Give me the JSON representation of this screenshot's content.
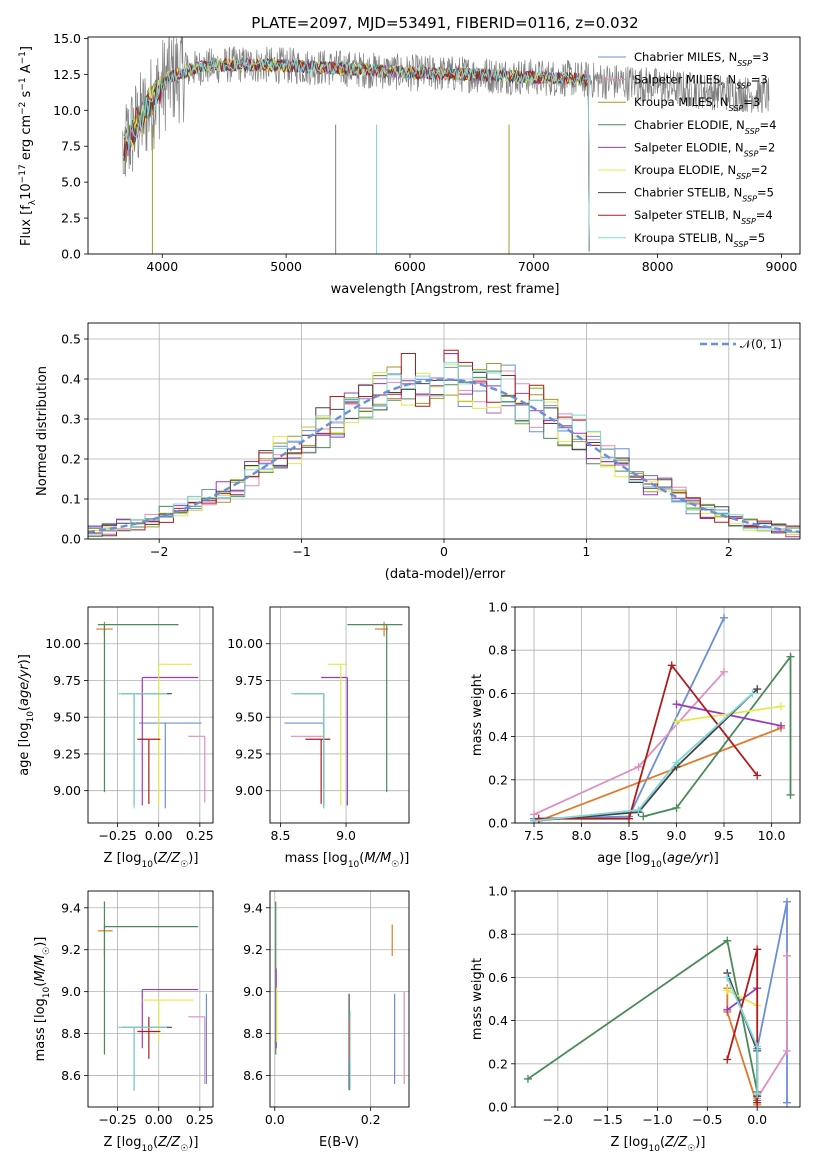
{
  "title": "PLATE=2097, MJD=53491, FIBERID=0116, z=0.032",
  "colors": {
    "Chabrier MILES": "#6a8fd8",
    "Salpeter MILES": "#e08dc0",
    "Kroupa MILES": "#a09a2a",
    "Chabrier ELODIE": "#4c8a5a",
    "Salpeter ELODIE": "#9b3bbb",
    "Kroupa ELODIE": "#e4e84e",
    "Chabrier STELIB": "#444444",
    "Salpeter STELIB": "#b01c1c",
    "Kroupa STELIB": "#7fd8d8",
    "orange": "#e07a2a",
    "normal": "#6a8fd8",
    "grid": "#b0b0b0"
  },
  "legend": [
    {
      "name": "Chabrier MILES",
      "nssp": "3"
    },
    {
      "name": "Salpeter MILES",
      "nssp": "3"
    },
    {
      "name": "Kroupa MILES",
      "nssp": "3"
    },
    {
      "name": "Chabrier ELODIE",
      "nssp": "4"
    },
    {
      "name": "Salpeter ELODIE",
      "nssp": "2"
    },
    {
      "name": "Kroupa ELODIE",
      "nssp": "2"
    },
    {
      "name": "Chabrier STELIB",
      "nssp": "5"
    },
    {
      "name": "Salpeter STELIB",
      "nssp": "4"
    },
    {
      "name": "Kroupa STELIB",
      "nssp": "5"
    }
  ],
  "legend_normal": "𝒩(0, 1)",
  "chart_data": [
    {
      "id": "spectrum",
      "type": "line",
      "xlabel": "wavelength [Angstrom, rest frame]",
      "ylabel": "Flux [f_λ 10^-17 erg cm^-2 s^-1 A^-1]",
      "xlim": [
        3400,
        9150
      ],
      "ylim": [
        0,
        15.1
      ],
      "xticks": [
        4000,
        5000,
        6000,
        7000,
        8000,
        9000
      ],
      "yticks": [
        0.0,
        2.5,
        5.0,
        7.5,
        10.0,
        12.5,
        15.0
      ],
      "ytick_labels": [
        "0.0",
        "2.5",
        "5.0",
        "7.5",
        "10.0",
        "12.5",
        "15.0"
      ],
      "grid": false,
      "legend_position": "top-right",
      "data_range": [
        3680,
        8900
      ],
      "model_continuum": {
        "x": [
          3690,
          3800,
          3950,
          4050,
          4300,
          4600,
          5000,
          5500,
          6000,
          6500,
          7000,
          7300,
          7450
        ],
        "y": [
          7.5,
          9.0,
          11.0,
          12.3,
          13.0,
          13.2,
          13.1,
          12.9,
          12.6,
          12.5,
          12.3,
          12.2,
          12.1
        ]
      },
      "model_end": 7440
    },
    {
      "id": "residuals",
      "type": "histogram",
      "xlabel": "(data-model)/error",
      "ylabel": "Normed distribution",
      "xlim": [
        -2.5,
        2.5
      ],
      "ylim": [
        0,
        0.54
      ],
      "xticks": [
        -2,
        -1,
        0,
        1,
        2
      ],
      "yticks": [
        0.0,
        0.1,
        0.2,
        0.3,
        0.4,
        0.5
      ],
      "ytick_labels": [
        "0.0",
        "0.1",
        "0.2",
        "0.3",
        "0.4",
        "0.5"
      ],
      "grid": true,
      "legend_position": "top-right",
      "bin_width": 0.1
    },
    {
      "id": "age_vs_Z",
      "type": "scatter",
      "xlabel": "Z [log10(Z/Z☉)]",
      "ylabel": "age  [log10(age/yr)]",
      "xlim": [
        -0.43,
        0.33
      ],
      "ylim": [
        8.78,
        10.25
      ],
      "xticks": [
        -0.25,
        0.0,
        0.25
      ],
      "xtick_labels": [
        "−0.25",
        "0.00",
        "0.25"
      ],
      "yticks": [
        9.0,
        9.25,
        9.5,
        9.75,
        10.0
      ],
      "ytick_labels": [
        "9.00",
        "9.25",
        "9.50",
        "9.75",
        "10.00"
      ],
      "grid": true,
      "points": [
        {
          "series": "Chabrier MILES",
          "x": 0.04,
          "y": 9.46,
          "xerr": [
            0.16,
            0.22
          ],
          "yerr": [
            0.58,
            0.0
          ]
        },
        {
          "series": "Salpeter MILES",
          "x": 0.28,
          "y": 9.37,
          "xerr": [
            0.1,
            0.0
          ],
          "yerr": [
            0.45,
            0.0
          ]
        },
        {
          "series": "orange",
          "x": -0.33,
          "y": 10.1,
          "xerr": [
            0.05,
            0.05
          ],
          "yerr": [
            0.05,
            0.05
          ]
        },
        {
          "series": "Chabrier ELODIE",
          "x": -0.33,
          "y": 10.13,
          "xerr": [
            0.04,
            0.45
          ],
          "yerr": [
            1.14,
            0.0
          ]
        },
        {
          "series": "Salpeter ELODIE",
          "x": -0.1,
          "y": 9.77,
          "xerr": [
            0.0,
            0.34
          ],
          "yerr": [
            0.87,
            0.0
          ]
        },
        {
          "series": "Kroupa ELODIE",
          "x": 0.0,
          "y": 9.86,
          "xerr": [
            0.0,
            0.2
          ],
          "yerr": [
            0.96,
            0.0
          ]
        },
        {
          "series": "Chabrier STELIB",
          "x": -0.15,
          "y": 9.66,
          "xerr": [
            0.08,
            0.23
          ],
          "yerr": [
            0.76,
            0.0
          ]
        },
        {
          "series": "Salpeter STELIB",
          "x": -0.06,
          "y": 9.35,
          "xerr": [
            0.07,
            0.07
          ],
          "yerr": [
            0.44,
            0.0
          ]
        },
        {
          "series": "Kroupa STELIB",
          "x": -0.15,
          "y": 9.66,
          "xerr": [
            0.1,
            0.2
          ],
          "yerr": [
            0.78,
            0.0
          ]
        }
      ]
    },
    {
      "id": "age_vs_mass",
      "type": "scatter",
      "xlabel": "mass [log10(M/M☉)]",
      "ylabel": "",
      "xlim": [
        8.42,
        9.48
      ],
      "ylim": [
        8.78,
        10.25
      ],
      "xticks": [
        8.5,
        9.0
      ],
      "xtick_labels": [
        "8.5",
        "9.0"
      ],
      "yticks": [
        9.0,
        9.25,
        9.5,
        9.75,
        10.0
      ],
      "ytick_labels": [
        "9.00",
        "9.25",
        "9.50",
        "9.75",
        "10.00"
      ],
      "grid": true,
      "points": [
        {
          "series": "Chabrier MILES",
          "x": 8.83,
          "y": 9.46,
          "xerr": [
            0.3,
            0.0
          ],
          "yerr": [
            0.58,
            0.0
          ]
        },
        {
          "series": "Salpeter MILES",
          "x": 8.83,
          "y": 9.37,
          "xerr": [
            0.25,
            0.0
          ],
          "yerr": [
            0.45,
            0.0
          ]
        },
        {
          "series": "orange",
          "x": 9.29,
          "y": 10.1,
          "xerr": [
            0.07,
            0.03
          ],
          "yerr": [
            0.05,
            0.05
          ]
        },
        {
          "series": "Chabrier ELODIE",
          "x": 9.31,
          "y": 10.13,
          "xerr": [
            0.3,
            0.12
          ],
          "yerr": [
            1.14,
            0.0
          ]
        },
        {
          "series": "Salpeter ELODIE",
          "x": 9.01,
          "y": 9.77,
          "xerr": [
            0.2,
            0.0
          ],
          "yerr": [
            0.87,
            0.0
          ]
        },
        {
          "series": "Kroupa ELODIE",
          "x": 8.96,
          "y": 9.86,
          "xerr": [
            0.1,
            0.05
          ],
          "yerr": [
            0.96,
            0.0
          ]
        },
        {
          "series": "Chabrier STELIB",
          "x": 8.83,
          "y": 9.66,
          "xerr": [
            0.23,
            0.0
          ],
          "yerr": [
            0.76,
            0.0
          ]
        },
        {
          "series": "Salpeter STELIB",
          "x": 8.81,
          "y": 9.35,
          "xerr": [
            0.12,
            0.07
          ],
          "yerr": [
            0.44,
            0.0
          ]
        },
        {
          "series": "Kroupa STELIB",
          "x": 8.83,
          "y": 9.66,
          "xerr": [
            0.25,
            0.0
          ],
          "yerr": [
            0.78,
            0.0
          ]
        }
      ]
    },
    {
      "id": "weight_vs_age",
      "type": "line",
      "xlabel": "age  [log10(age/yr)]",
      "ylabel": "mass weight",
      "xlim": [
        7.3,
        10.3
      ],
      "ylim": [
        0.0,
        1.0
      ],
      "xticks": [
        7.5,
        8.0,
        8.5,
        9.0,
        9.5,
        10.0
      ],
      "xtick_labels": [
        "7.5",
        "8.0",
        "8.5",
        "9.0",
        "9.5",
        "10.0"
      ],
      "yticks": [
        0.0,
        0.2,
        0.4,
        0.6,
        0.8,
        1.0
      ],
      "ytick_labels": [
        "0.0",
        "0.2",
        "0.4",
        "0.6",
        "0.8",
        "1.0"
      ],
      "grid": true,
      "series": [
        {
          "series": "Chabrier MILES",
          "x": [
            7.5,
            8.5,
            9.5
          ],
          "y": [
            0.02,
            0.03,
            0.95
          ]
        },
        {
          "series": "Salpeter MILES",
          "x": [
            7.5,
            8.6,
            9.5
          ],
          "y": [
            0.04,
            0.26,
            0.7
          ]
        },
        {
          "series": "orange",
          "x": [
            7.55,
            10.1
          ],
          "y": [
            0.01,
            0.44
          ]
        },
        {
          "series": "Chabrier ELODIE",
          "x": [
            8.65,
            9.0,
            10.2,
            10.2
          ],
          "y": [
            0.03,
            0.07,
            0.77,
            0.13
          ]
        },
        {
          "series": "Salpeter ELODIE",
          "x": [
            9.0,
            10.1
          ],
          "y": [
            0.55,
            0.45
          ]
        },
        {
          "series": "Kroupa ELODIE",
          "x": [
            9.0,
            10.1
          ],
          "y": [
            0.47,
            0.54
          ]
        },
        {
          "series": "Chabrier STELIB",
          "x": [
            7.5,
            8.6,
            9.0,
            9.85
          ],
          "y": [
            0.01,
            0.05,
            0.26,
            0.62
          ]
        },
        {
          "series": "Salpeter STELIB",
          "x": [
            7.55,
            8.5,
            8.95,
            9.85
          ],
          "y": [
            0.02,
            0.02,
            0.73,
            0.22
          ]
        },
        {
          "series": "Kroupa STELIB",
          "x": [
            7.5,
            8.6,
            9.0,
            9.8
          ],
          "y": [
            0.01,
            0.06,
            0.28,
            0.6
          ]
        }
      ]
    },
    {
      "id": "mass_vs_Z",
      "type": "scatter",
      "xlabel": "Z [log10(Z/Z☉)]",
      "ylabel": "mass [log10(M/M☉)]",
      "xlim": [
        -0.43,
        0.33
      ],
      "ylim": [
        8.45,
        9.48
      ],
      "xticks": [
        -0.25,
        0.0,
        0.25
      ],
      "xtick_labels": [
        "−0.25",
        "0.00",
        "0.25"
      ],
      "yticks": [
        8.6,
        8.8,
        9.0,
        9.2,
        9.4
      ],
      "ytick_labels": [
        "8.6",
        "8.8",
        "9.0",
        "9.2",
        "9.4"
      ],
      "grid": true,
      "points": [
        {
          "series": "Chabrier MILES",
          "x": 0.29,
          "y": 8.83,
          "xerr": [
            0.0,
            0.0
          ],
          "yerr": [
            0.27,
            0.16
          ]
        },
        {
          "series": "Salpeter MILES",
          "x": 0.28,
          "y": 8.88,
          "xerr": [
            0.1,
            0.0
          ],
          "yerr": [
            0.32,
            0.0
          ]
        },
        {
          "series": "orange",
          "x": -0.33,
          "y": 9.29,
          "xerr": [
            0.04,
            0.05
          ],
          "yerr": [
            0.12,
            0.03
          ]
        },
        {
          "series": "Chabrier ELODIE",
          "x": -0.33,
          "y": 9.31,
          "xerr": [
            0.0,
            0.57
          ],
          "yerr": [
            0.61,
            0.12
          ]
        },
        {
          "series": "Salpeter ELODIE",
          "x": -0.1,
          "y": 9.01,
          "xerr": [
            0.0,
            0.34
          ],
          "yerr": [
            0.28,
            0.0
          ]
        },
        {
          "series": "Kroupa ELODIE",
          "x": 0.0,
          "y": 8.96,
          "xerr": [
            0.1,
            0.21
          ],
          "yerr": [
            0.2,
            0.0
          ]
        },
        {
          "series": "Chabrier STELIB",
          "x": -0.15,
          "y": 8.83,
          "xerr": [
            0.08,
            0.23
          ],
          "yerr": [
            0.3,
            0.0
          ]
        },
        {
          "series": "Salpeter STELIB",
          "x": -0.06,
          "y": 8.81,
          "xerr": [
            0.07,
            0.07
          ],
          "yerr": [
            0.13,
            0.07
          ]
        },
        {
          "series": "Kroupa STELIB",
          "x": -0.15,
          "y": 8.83,
          "xerr": [
            0.1,
            0.2
          ],
          "yerr": [
            0.3,
            0.0
          ]
        }
      ]
    },
    {
      "id": "mass_vs_ebv",
      "type": "scatter",
      "xlabel": "E(B-V)",
      "ylabel": "",
      "xlim": [
        -0.01,
        0.28
      ],
      "ylim": [
        8.45,
        9.48
      ],
      "xticks": [
        0.0,
        0.2
      ],
      "xtick_labels": [
        "0.0",
        "0.2"
      ],
      "yticks": [
        8.6,
        8.8,
        9.0,
        9.2,
        9.4
      ],
      "ytick_labels": [
        "8.6",
        "8.8",
        "9.0",
        "9.2",
        "9.4"
      ],
      "grid": true,
      "points": [
        {
          "series": "Chabrier MILES",
          "x": 0.25,
          "y": 8.83,
          "xerr": [
            0.0,
            0.0
          ],
          "yerr": [
            0.27,
            0.16
          ]
        },
        {
          "series": "Salpeter MILES",
          "x": 0.27,
          "y": 8.88,
          "xerr": [
            0.0,
            0.0
          ],
          "yerr": [
            0.32,
            0.12
          ]
        },
        {
          "series": "orange",
          "x": 0.245,
          "y": 9.29,
          "xerr": [
            0.0,
            0.0
          ],
          "yerr": [
            0.12,
            0.03
          ]
        },
        {
          "series": "Chabrier ELODIE",
          "x": 0.002,
          "y": 9.31,
          "xerr": [
            0.0,
            0.0
          ],
          "yerr": [
            0.61,
            0.12
          ]
        },
        {
          "series": "Salpeter ELODIE",
          "x": 0.003,
          "y": 9.01,
          "xerr": [
            0.0,
            0.0
          ],
          "yerr": [
            0.28,
            0.1
          ]
        },
        {
          "series": "Kroupa ELODIE",
          "x": 0.004,
          "y": 8.96,
          "xerr": [
            0.0,
            0.0
          ],
          "yerr": [
            0.2,
            0.06
          ]
        },
        {
          "series": "Chabrier STELIB",
          "x": 0.155,
          "y": 8.83,
          "xerr": [
            0.0,
            0.0
          ],
          "yerr": [
            0.3,
            0.16
          ]
        },
        {
          "series": "Salpeter STELIB",
          "x": 0.155,
          "y": 8.81,
          "xerr": [
            0.0,
            0.0
          ],
          "yerr": [
            0.13,
            0.07
          ]
        },
        {
          "series": "Kroupa STELIB",
          "x": 0.157,
          "y": 8.83,
          "xerr": [
            0.0,
            0.0
          ],
          "yerr": [
            0.3,
            0.08
          ]
        }
      ]
    },
    {
      "id": "weight_vs_Z",
      "type": "line",
      "xlabel": "Z [log10(Z/Z☉)]",
      "ylabel": "mass weight",
      "xlim": [
        -2.43,
        0.43
      ],
      "ylim": [
        0.0,
        1.0
      ],
      "xticks": [
        -2.0,
        -1.5,
        -1.0,
        -0.5,
        0.0
      ],
      "xtick_labels": [
        "−2.0",
        "−1.5",
        "−1.0",
        "−0.5",
        "0.0"
      ],
      "yticks": [
        0.0,
        0.2,
        0.4,
        0.6,
        0.8,
        1.0
      ],
      "ytick_labels": [
        "0.0",
        "0.2",
        "0.4",
        "0.6",
        "0.8",
        "1.0"
      ],
      "grid": true,
      "series": [
        {
          "series": "Chabrier MILES",
          "x": [
            0.0,
            0.3,
            0.3
          ],
          "y": [
            0.27,
            0.95,
            0.02
          ]
        },
        {
          "series": "Salpeter MILES",
          "x": [
            0.0,
            0.3,
            0.3
          ],
          "y": [
            0.04,
            0.26,
            0.7
          ]
        },
        {
          "series": "orange",
          "x": [
            -0.3,
            -0.3,
            0.0
          ],
          "y": [
            0.55,
            0.44,
            0.01
          ]
        },
        {
          "series": "Chabrier ELODIE",
          "x": [
            -2.3,
            -0.3,
            0.0,
            0.0
          ],
          "y": [
            0.13,
            0.77,
            0.07,
            0.03
          ]
        },
        {
          "series": "Salpeter ELODIE",
          "x": [
            -0.3,
            0.0
          ],
          "y": [
            0.45,
            0.55
          ]
        },
        {
          "series": "Kroupa ELODIE",
          "x": [
            -0.3,
            0.0
          ],
          "y": [
            0.54,
            0.47
          ]
        },
        {
          "series": "Chabrier STELIB",
          "x": [
            -0.3,
            0.0,
            0.0
          ],
          "y": [
            0.62,
            0.26,
            0.05
          ]
        },
        {
          "series": "Salpeter STELIB",
          "x": [
            -0.3,
            0.0,
            0.0
          ],
          "y": [
            0.22,
            0.73,
            0.02
          ]
        },
        {
          "series": "Kroupa STELIB",
          "x": [
            -0.3,
            0.0,
            0.0
          ],
          "y": [
            0.6,
            0.28,
            0.06
          ]
        }
      ]
    }
  ]
}
